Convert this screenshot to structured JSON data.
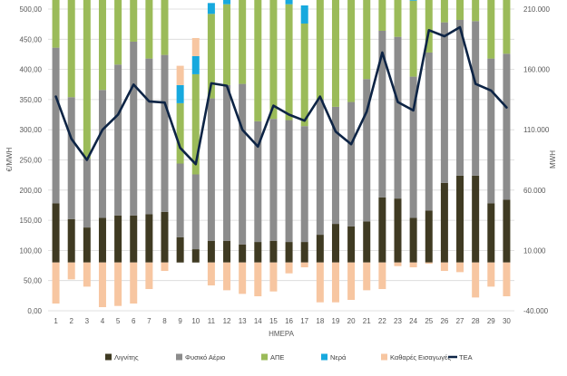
{
  "chart_data": {
    "type": "bar",
    "subtype": "stacked-bar-with-line",
    "title": "",
    "xlabel": "ΗΜΕΡΑ",
    "ylabel_left": "€/MWH",
    "ylabel_right": "MWH",
    "left_axis": {
      "min": 0,
      "max": 500,
      "step": 50,
      "tick_labels": [
        "0,00",
        "50,00",
        "100,00",
        "150,00",
        "200,00",
        "250,00",
        "300,00",
        "350,00",
        "400,00",
        "450,00",
        "500,00"
      ]
    },
    "right_axis": {
      "min": -40000,
      "max": 210000,
      "step": 50000,
      "tick_labels": [
        "-40.000",
        "10.000",
        "60.000",
        "110.000",
        "160.000",
        "210.000"
      ]
    },
    "categories": [
      "1",
      "2",
      "3",
      "4",
      "5",
      "6",
      "7",
      "8",
      "9",
      "10",
      "11",
      "12",
      "13",
      "14",
      "15",
      "16",
      "17",
      "18",
      "19",
      "20",
      "21",
      "22",
      "23",
      "24",
      "25",
      "26",
      "27",
      "28",
      "29",
      "30"
    ],
    "series": [
      {
        "name": "Λιγνίτης",
        "axis": "right",
        "color": "#3f3a22",
        "values": [
          49000,
          36000,
          29000,
          37000,
          39000,
          39000,
          40000,
          42000,
          21000,
          11000,
          18000,
          18000,
          15000,
          17000,
          18000,
          17000,
          17000,
          23000,
          32000,
          30000,
          34000,
          54000,
          53000,
          37000,
          43000,
          66000,
          72000,
          72000,
          49000,
          52000
        ]
      },
      {
        "name": "Φυσικό Αέριο",
        "axis": "right",
        "color": "#8c8c8c",
        "values": [
          129000,
          101000,
          57000,
          106000,
          125000,
          144000,
          129000,
          130000,
          61000,
          62000,
          118000,
          129000,
          133000,
          100000,
          101000,
          101000,
          96000,
          112000,
          97000,
          103000,
          118000,
          138000,
          134000,
          117000,
          131000,
          133000,
          129000,
          128000,
          120000,
          121000
        ]
      },
      {
        "name": "ΑΠΕ",
        "axis": "right",
        "color": "#9bbb59",
        "values": [
          83000,
          100000,
          137000,
          132000,
          118000,
          79000,
          88000,
          64000,
          50000,
          83000,
          70000,
          67000,
          87000,
          117000,
          106000,
          96000,
          85000,
          112000,
          125000,
          122000,
          98000,
          64000,
          68000,
          63000,
          64000,
          63000,
          64000,
          95000,
          101000,
          78000
        ]
      },
      {
        "name": "Νερά",
        "axis": "right",
        "color": "#17a9de",
        "values": [
          17000,
          15000,
          13000,
          14000,
          15000,
          15000,
          14000,
          14000,
          15000,
          15000,
          9000,
          11000,
          12000,
          12000,
          13000,
          15000,
          15000,
          19000,
          18000,
          17000,
          20000,
          19000,
          19000,
          18000,
          25000,
          18000,
          17000,
          18000,
          17000,
          17000
        ]
      },
      {
        "name": "Καθαρές Εισαγωγές",
        "axis": "right",
        "color": "#f7c6a1",
        "values": [
          -34000,
          -14000,
          -20000,
          -37000,
          -36000,
          -34000,
          -22000,
          -7000,
          16000,
          15000,
          -19000,
          -23000,
          -26000,
          -28000,
          -24000,
          -9000,
          -4000,
          -33000,
          -33000,
          -31000,
          -23000,
          -22000,
          -3000,
          -4000,
          -1000,
          -7000,
          -8000,
          -29000,
          -20000,
          -28000
        ]
      },
      {
        "name": "ΤΕΑ",
        "axis": "left",
        "type": "line",
        "color": "#0d2445",
        "values": [
          355,
          285,
          250,
          300,
          325,
          375,
          347,
          345,
          270,
          243,
          377,
          373,
          300,
          272,
          340,
          325,
          315,
          355,
          297,
          276,
          330,
          428,
          346,
          332,
          465,
          455,
          470,
          376,
          365,
          337
        ]
      }
    ],
    "legend": {
      "position": "bottom"
    },
    "grid": true
  }
}
